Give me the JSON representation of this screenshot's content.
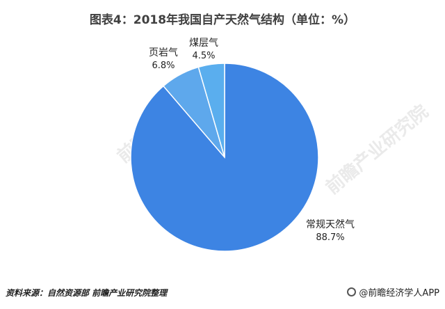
{
  "title": "图表4：2018年我国自产天然气结构（单位：%）",
  "colors": {
    "conventional": "#3d84e3",
    "shale": "#5ea8ec",
    "coalbed": "#5aaeee",
    "separator": "#ffffff"
  },
  "chart_data": {
    "type": "pie",
    "title": "图表4：2018年我国自产天然气结构（单位：%）",
    "slices": [
      {
        "label": "常规天然气",
        "value": 88.7,
        "value_label": "88.7%"
      },
      {
        "label": "页岩气",
        "value": 6.8,
        "value_label": "6.8%"
      },
      {
        "label": "煤层气",
        "value": 4.5,
        "value_label": "4.5%"
      }
    ]
  },
  "source": "资料来源：自然资源部 前瞻产业研究院整理",
  "brand": "@前瞻经济学人APP",
  "watermark": "前瞻产业研究院"
}
